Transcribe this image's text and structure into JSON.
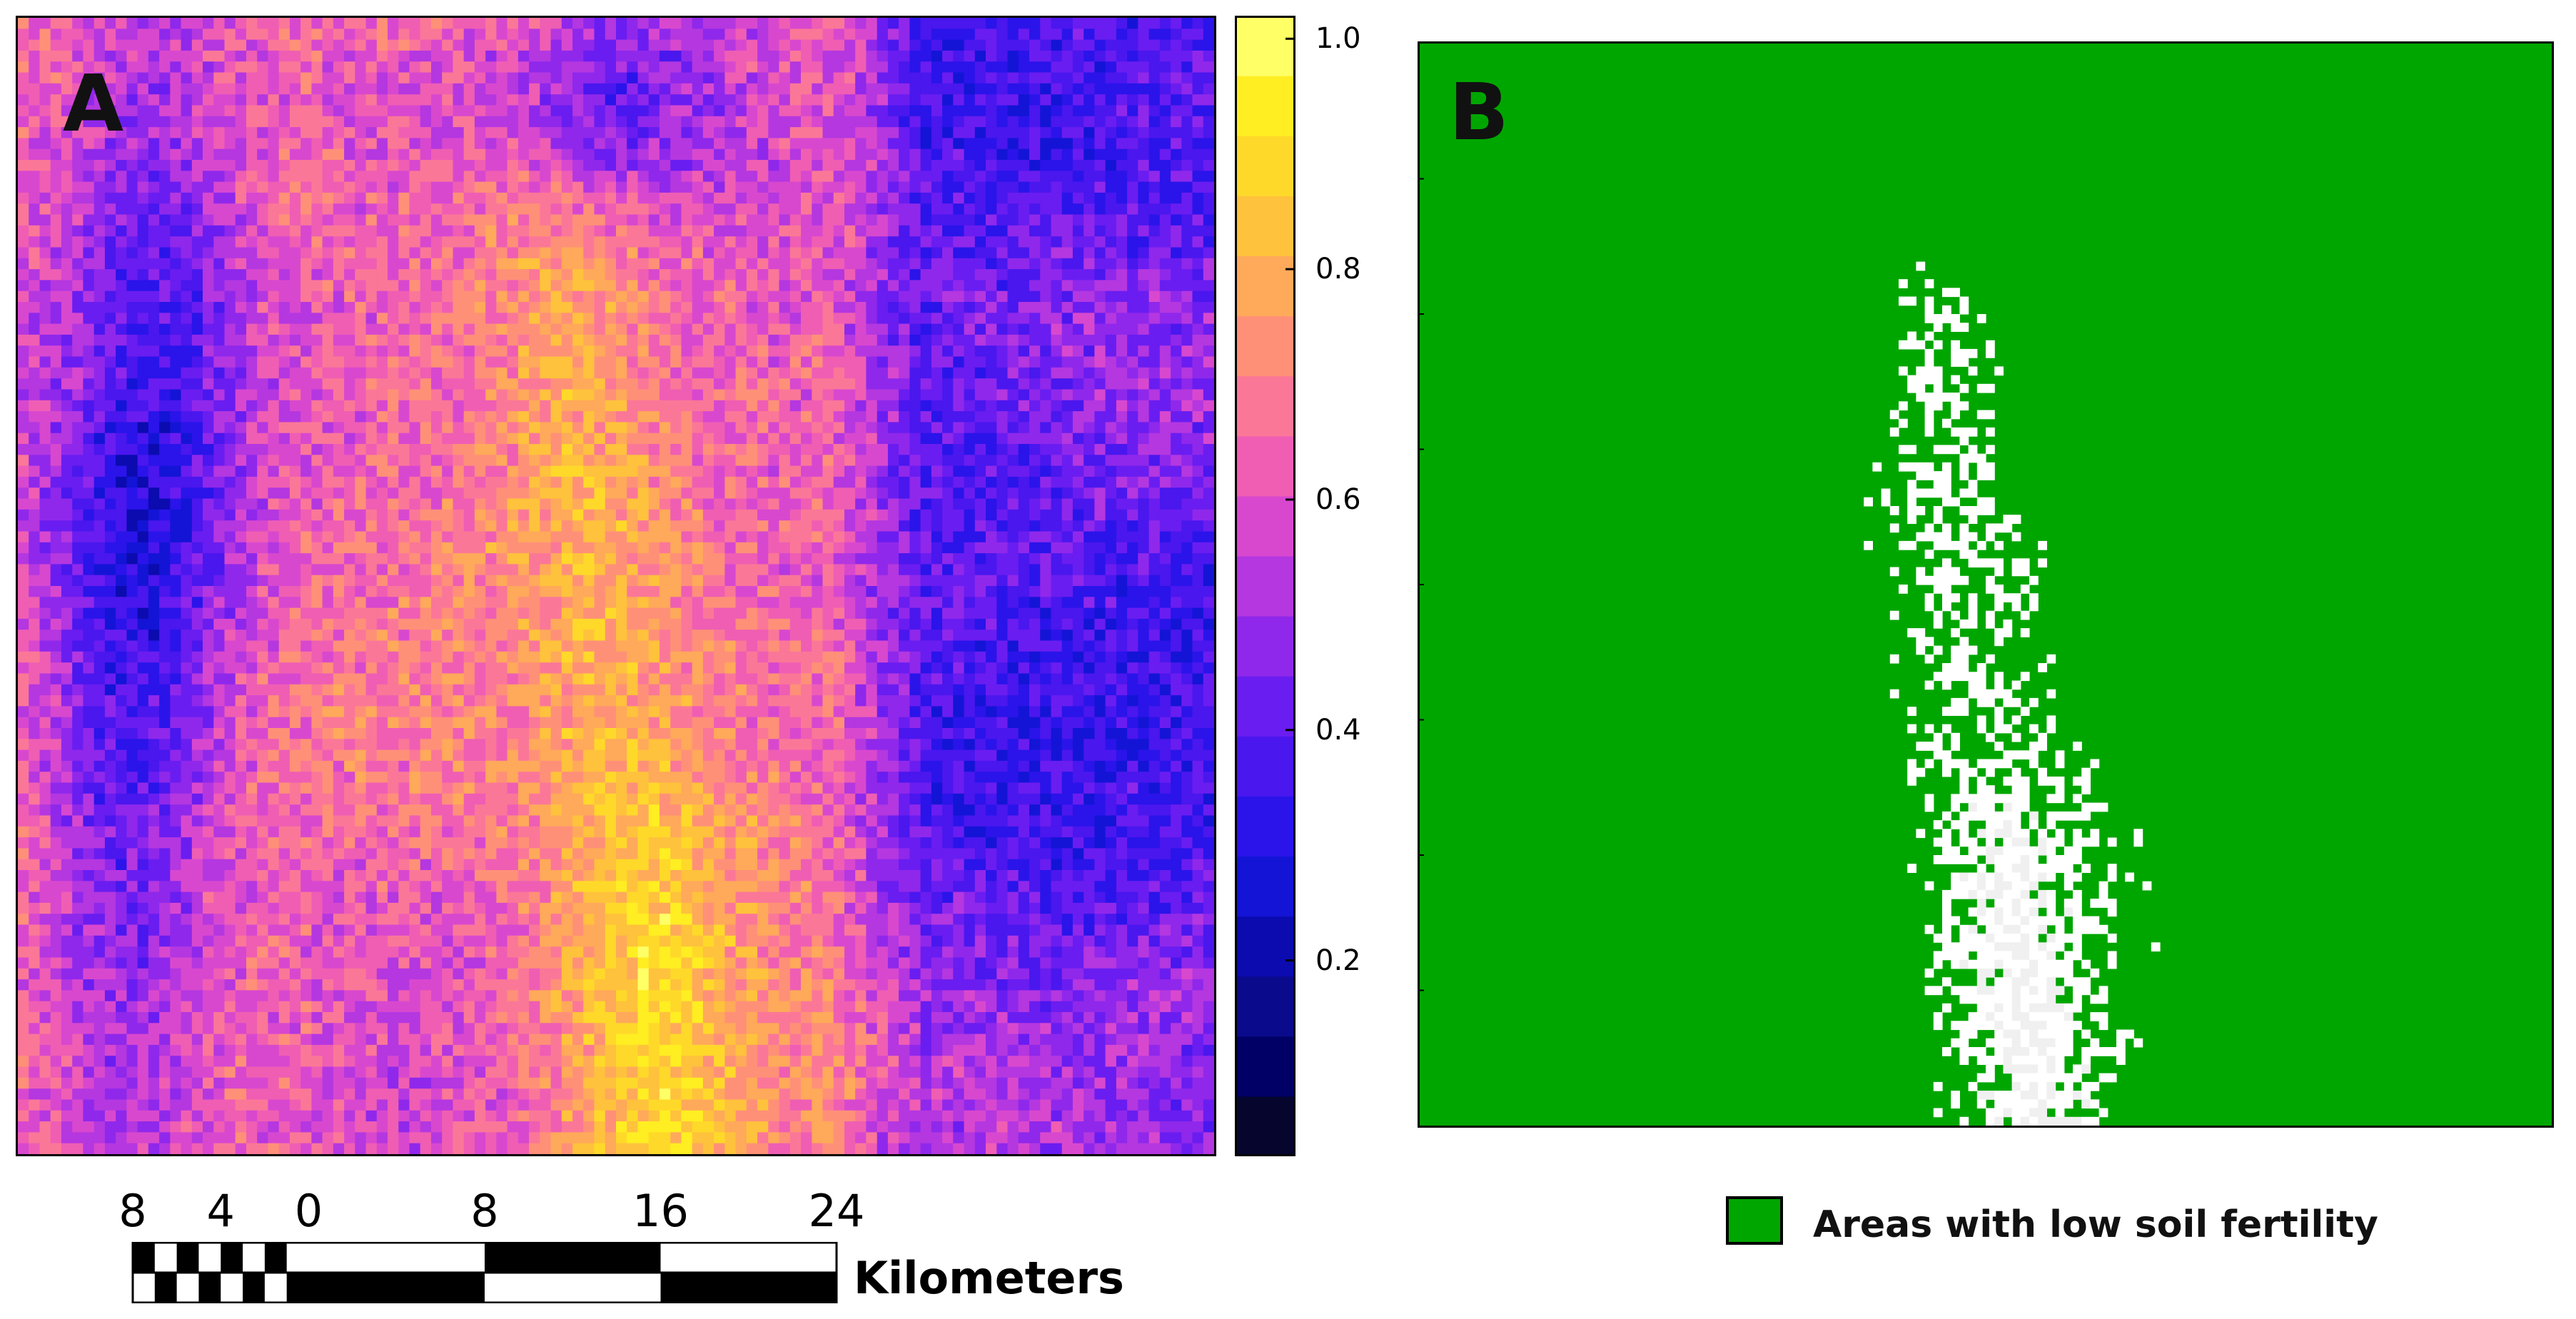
{
  "panel_a": {
    "label": "A",
    "colorbar": {
      "ticks": [
        {
          "value": 0.2,
          "label": "0.2"
        },
        {
          "value": 0.4,
          "label": "0.4"
        },
        {
          "value": 0.6,
          "label": "0.6"
        },
        {
          "value": 0.8,
          "label": "0.8"
        },
        {
          "value": 1.0,
          "label": "1.0"
        }
      ],
      "range": [
        0.03,
        1.02
      ],
      "colors": [
        "#05052e",
        "#000066",
        "#0a0a8c",
        "#0b0bb0",
        "#1414d6",
        "#2a14ea",
        "#4a17ee",
        "#6a1df0",
        "#8f28eb",
        "#b437e0",
        "#d848cf",
        "#ef5eb3",
        "#fb7798",
        "#ff9078",
        "#ffa95a",
        "#ffc23c",
        "#ffd92a",
        "#ffee22",
        "#ffff66"
      ]
    }
  },
  "panel_b": {
    "label": "B",
    "colors": {
      "low_fertility": "#00a600",
      "other": "#ffffff",
      "other_dense": "#f0f0f0"
    }
  },
  "scale_bar": {
    "unit": "Kilometers",
    "labels": [
      {
        "km": -8,
        "text": "8"
      },
      {
        "km": -4,
        "text": "4"
      },
      {
        "km": 0,
        "text": "0"
      },
      {
        "km": 8,
        "text": "8"
      },
      {
        "km": 16,
        "text": "16"
      },
      {
        "km": 24,
        "text": "24"
      }
    ]
  },
  "legend": {
    "label": "Areas with low soil fertility",
    "color": "#00a600"
  }
}
